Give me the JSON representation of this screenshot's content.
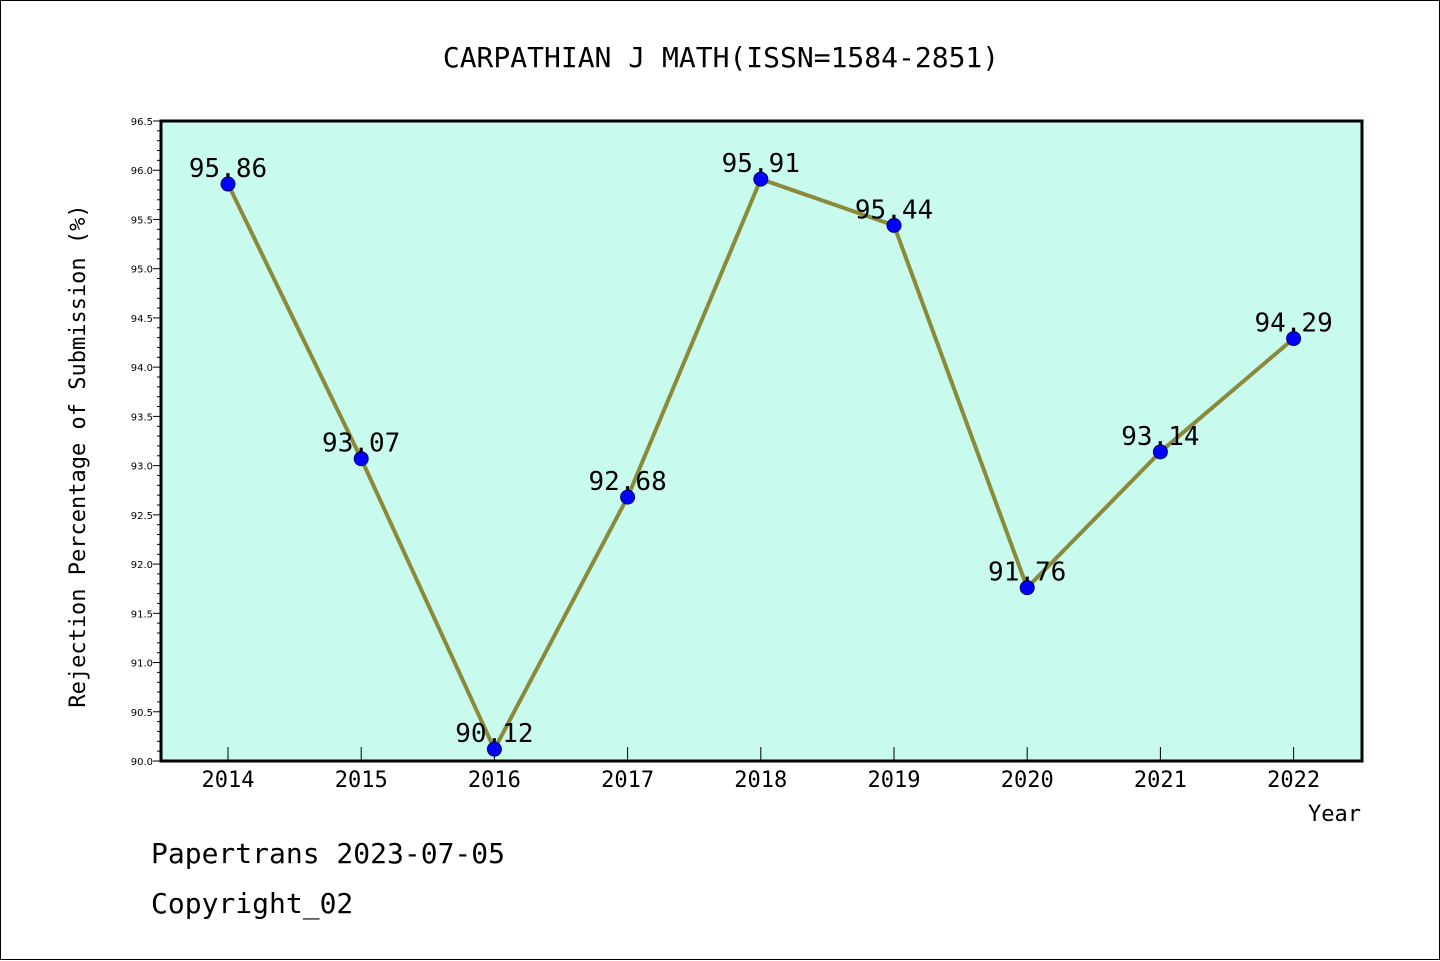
{
  "colors": {
    "plot_background": "#c8fbee",
    "line": "#8b8a3a",
    "marker": "#0000ff",
    "axis": "#000000"
  },
  "chart_data": {
    "type": "line",
    "title": "CARPATHIAN J MATH(ISSN=1584-2851)",
    "xlabel": "Year",
    "ylabel": "Rejection Percentage of Submission (%)",
    "x": [
      "2014",
      "2015",
      "2016",
      "2017",
      "2018",
      "2019",
      "2020",
      "2021",
      "2022"
    ],
    "values": [
      95.86,
      93.07,
      90.12,
      92.68,
      95.91,
      95.44,
      91.76,
      93.14,
      94.29
    ],
    "data_labels": [
      "95.86",
      "93.07",
      "90.12",
      "92.68",
      "95.91",
      "95.44",
      "91.76",
      "93.14",
      "94.29"
    ],
    "ylim": [
      90.0,
      96.5
    ],
    "yticks": [
      "90.0",
      "90.5",
      "91.0",
      "91.5",
      "92.0",
      "92.5",
      "93.0",
      "93.5",
      "94.0",
      "94.5",
      "95.0",
      "95.5",
      "96.0",
      "96.5"
    ],
    "grid": false,
    "legend": "none"
  },
  "footer": {
    "line1": "Papertrans 2023-07-05",
    "line2": "Copyright_02"
  }
}
